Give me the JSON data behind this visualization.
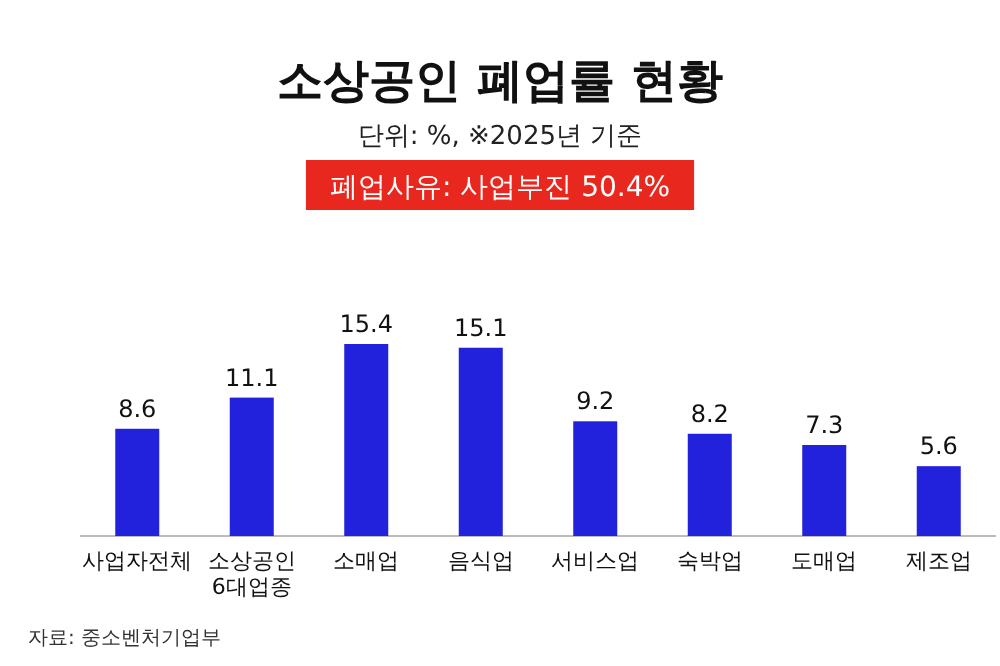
{
  "chart_data": {
    "type": "bar",
    "title": "소상공인 폐업률 현황",
    "subtitle": "단위: %, ※2025년 기준",
    "categories": [
      "사업자전체",
      "소상공인 6대업종",
      "소매업",
      "음식업",
      "서비스업",
      "숙박업",
      "도매업",
      "제조업"
    ],
    "values": [
      8.6,
      11.1,
      15.4,
      15.1,
      9.2,
      8.2,
      7.3,
      5.6
    ],
    "color": "#2222dd",
    "data_labels": true,
    "annotations": [
      "폐업사유: 사업부진 50.4%",
      "자료: 중소벤처기업부"
    ]
  }
}
